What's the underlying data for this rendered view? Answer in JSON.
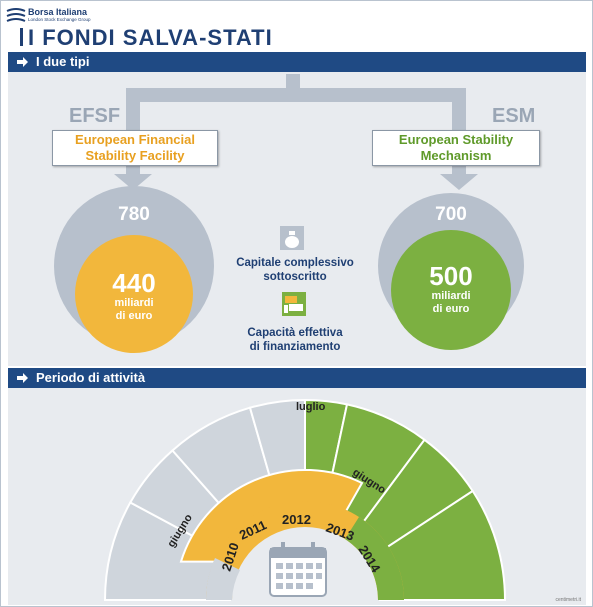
{
  "header": {
    "brand": "Borsa Italiana",
    "brand_sub": "London Stock Exchange Group",
    "title": "I FONDI SALVA-STATI"
  },
  "sections": {
    "types": "I due tipi",
    "period": "Periodo di attività"
  },
  "funds": {
    "efsf": {
      "abbr": "EFSF",
      "name_line1": "European Financial",
      "name_line2": "Stability Facility",
      "subscribed": "780",
      "capacity": "440",
      "unit_line1": "miliardi",
      "unit_line2": "di euro",
      "color": "#f2b73c"
    },
    "esm": {
      "abbr": "ESM",
      "name_line1": "European Stability",
      "name_line2": "Mechanism",
      "subscribed": "700",
      "capacity": "500",
      "unit_line1": "miliardi",
      "unit_line2": "di euro",
      "color": "#7cb041"
    }
  },
  "legend": {
    "subscribed_line1": "Capitale complessivo",
    "subscribed_line2": "sottoscritto",
    "capacity_line1": "Capacità effettiva",
    "capacity_line2": "di finanziamento",
    "subscribed_color": "#b7c0cc"
  },
  "timeline": {
    "years": [
      "2010",
      "2011",
      "2012",
      "2013",
      "2014"
    ],
    "efsf_start_label": "giugno",
    "esm_start_label": "luglio",
    "efsf_end_label": "giugno",
    "calendar_icon": "calendar-icon"
  },
  "credit": "centimetri.it"
}
